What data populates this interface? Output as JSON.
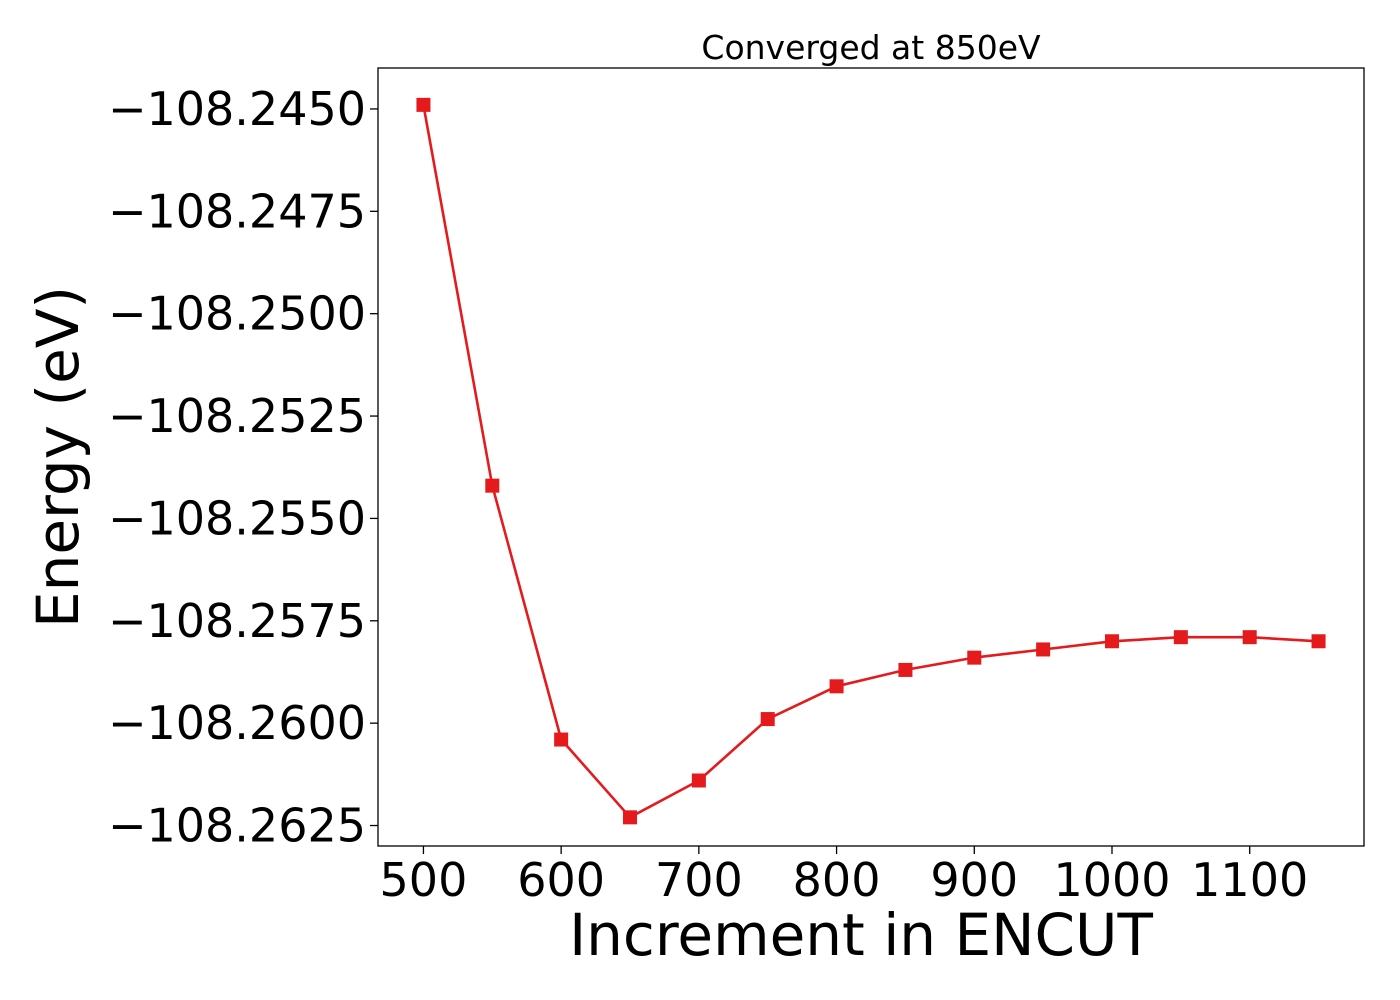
{
  "chart_data": {
    "type": "line",
    "title": "Converged at 850eV",
    "xlabel": "Increment in ENCUT",
    "ylabel": "Energy (eV)",
    "xlim": [
      467,
      1183
    ],
    "ylim": [
      -108.263,
      -108.244
    ],
    "xticks": [
      500,
      600,
      700,
      800,
      900,
      1000,
      1100
    ],
    "xtick_labels": [
      "500",
      "600",
      "700",
      "800",
      "900",
      "1000",
      "1100"
    ],
    "yticks": [
      -108.245,
      -108.2475,
      -108.25,
      -108.2525,
      -108.255,
      -108.2575,
      -108.26,
      -108.2625
    ],
    "ytick_labels": [
      "−108.2450",
      "−108.2475",
      "−108.2500",
      "−108.2525",
      "−108.2550",
      "−108.2575",
      "−108.2600",
      "−108.2625"
    ],
    "grid": false,
    "series": [
      {
        "color": "#e41a1c",
        "marker": "square",
        "x": [
          500,
          550,
          600,
          650,
          700,
          750,
          800,
          850,
          900,
          950,
          1000,
          1050,
          1100,
          1150
        ],
        "y": [
          -108.2449,
          -108.2542,
          -108.2604,
          -108.2623,
          -108.2614,
          -108.2599,
          -108.2591,
          -108.2587,
          -108.2584,
          -108.2582,
          -108.258,
          -108.2579,
          -108.2579,
          -108.258
        ]
      }
    ]
  }
}
